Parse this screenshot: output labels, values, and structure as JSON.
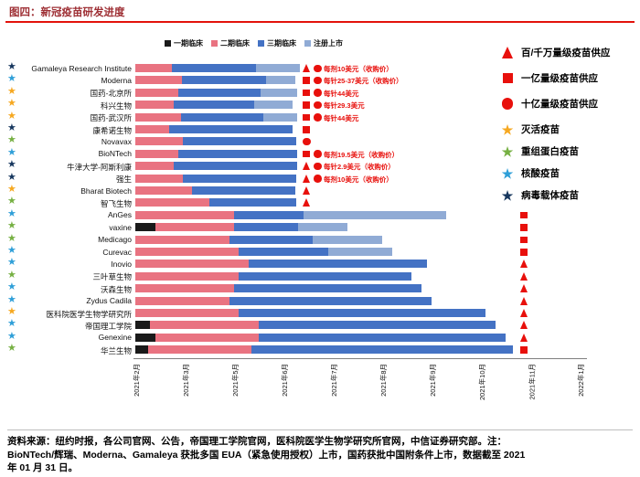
{
  "title": "图四：新冠疫苗研发进度",
  "colors": {
    "title": "#9e2f34",
    "rule": "#e3120b",
    "marker": "#e8100c",
    "phase1": "#1a1a1a",
    "phase2": "#e97381",
    "phase3": "#4472c4",
    "registered": "#90abd5",
    "star_inactivated": "#f6a821",
    "star_protein": "#76b043",
    "star_nucleic": "#2f9fd8",
    "star_vector": "#17375e"
  },
  "phase_legend": [
    "一期临床",
    "二期临床",
    "三期临床",
    "注册上市"
  ],
  "right_legend": [
    {
      "shape": "triangle",
      "label": "百/千万量级疫苗供应"
    },
    {
      "shape": "square",
      "label": "一亿量级疫苗供应"
    },
    {
      "shape": "circle",
      "label": "十亿量级疫苗供应"
    },
    {
      "shape": "star",
      "type": "inactivated",
      "label": "灭活疫苗"
    },
    {
      "shape": "star",
      "type": "protein",
      "label": "重组蛋白疫苗"
    },
    {
      "shape": "star",
      "type": "nucleic",
      "label": "核酸疫苗"
    },
    {
      "shape": "star",
      "type": "vector",
      "label": "病毒载体疫苗"
    }
  ],
  "chart_data": {
    "type": "bar",
    "subtype": "horizontal-stacked-timeline",
    "segment_unit": "x-axis tick intervals",
    "x_ticks": [
      "2021年2月",
      "2021年3月",
      "2021年5月",
      "2021年6月",
      "2021年7月",
      "2021年8月",
      "2021年9月",
      "2021年10月",
      "2021年11月",
      "2022年1月"
    ],
    "phases": [
      "一期临床",
      "二期临床",
      "三期临床",
      "注册上市"
    ],
    "rows": [
      {
        "name": "Gamaleya Research Institute",
        "star": "vector",
        "vaccine_type": "病毒载体疫苗",
        "segments": {
          "phase1": 0,
          "phase2": 0.74,
          "phase3": 1.7,
          "registered": 0.89
        },
        "markers": [
          "triangle",
          "circle"
        ],
        "marker_pos": 3.39,
        "price": "每剂10美元（收购价）"
      },
      {
        "name": "Moderna",
        "star": "nucleic",
        "vaccine_type": "核酸疫苗",
        "segments": {
          "phase1": 0,
          "phase2": 0.95,
          "phase3": 1.7,
          "registered": 0.6
        },
        "markers": [
          "square",
          "circle"
        ],
        "marker_pos": 3.39,
        "price": "每针25-37美元（收购价）"
      },
      {
        "name": "国药-北京所",
        "star": "inactivated",
        "vaccine_type": "灭活疫苗",
        "segments": {
          "phase1": 0,
          "phase2": 0.87,
          "phase3": 1.67,
          "registered": 0.74
        },
        "markers": [
          "square",
          "circle"
        ],
        "marker_pos": 3.39,
        "price": "每针44美元"
      },
      {
        "name": "科兴生物",
        "star": "inactivated",
        "vaccine_type": "灭活疫苗",
        "segments": {
          "phase1": 0,
          "phase2": 0.78,
          "phase3": 1.63,
          "registered": 0.78
        },
        "markers": [
          "square",
          "circle"
        ],
        "marker_pos": 3.39,
        "price": "每针29.3美元"
      },
      {
        "name": "国药-武汉所",
        "star": "inactivated",
        "vaccine_type": "灭活疫苗",
        "segments": {
          "phase1": 0,
          "phase2": 0.93,
          "phase3": 1.67,
          "registered": 0.68
        },
        "markers": [
          "square",
          "circle"
        ],
        "marker_pos": 3.39,
        "price": "每针44美元"
      },
      {
        "name": "康希诺生物",
        "star": "vector",
        "vaccine_type": "病毒载体疫苗",
        "segments": {
          "phase1": 0,
          "phase2": 0.69,
          "phase3": 2.5,
          "registered": 0
        },
        "markers": [
          "square"
        ],
        "marker_pos": 3.39,
        "price": ""
      },
      {
        "name": "Novavax",
        "star": "protein",
        "vaccine_type": "重组蛋白疫苗",
        "segments": {
          "phase1": 0,
          "phase2": 0.96,
          "phase3": 2.3,
          "registered": 0
        },
        "markers": [
          "circle"
        ],
        "marker_pos": 3.39,
        "price": ""
      },
      {
        "name": "BioNTech",
        "star": "nucleic",
        "vaccine_type": "核酸疫苗",
        "segments": {
          "phase1": 0,
          "phase2": 0.87,
          "phase3": 2.4,
          "registered": 0
        },
        "markers": [
          "square",
          "circle"
        ],
        "marker_pos": 3.39,
        "price": "每剂19.5美元（收购价）"
      },
      {
        "name": "牛津大学-阿斯利康",
        "star": "vector",
        "vaccine_type": "病毒载体疫苗",
        "segments": {
          "phase1": 0,
          "phase2": 0.78,
          "phase3": 2.5,
          "registered": 0
        },
        "markers": [
          "triangle",
          "circle"
        ],
        "marker_pos": 3.39,
        "price": "每针2.9美元（收购价）"
      },
      {
        "name": "强生",
        "star": "vector",
        "vaccine_type": "病毒载体疫苗",
        "segments": {
          "phase1": 0,
          "phase2": 0.96,
          "phase3": 2.3,
          "registered": 0
        },
        "markers": [
          "triangle",
          "circle"
        ],
        "marker_pos": 3.39,
        "price": "每剂10美元（收购价）"
      },
      {
        "name": "Bharat Biotech",
        "star": "inactivated",
        "vaccine_type": "灭活疫苗",
        "segments": {
          "phase1": 0,
          "phase2": 1.15,
          "phase3": 2.1,
          "registered": 0
        },
        "markers": [
          "triangle"
        ],
        "marker_pos": 3.39,
        "price": ""
      },
      {
        "name": "智飞生物",
        "star": "protein",
        "vaccine_type": "重组蛋白疫苗",
        "segments": {
          "phase1": 0,
          "phase2": 1.5,
          "phase3": 1.75,
          "registered": 0
        },
        "markers": [
          "triangle"
        ],
        "marker_pos": 3.39,
        "price": ""
      },
      {
        "name": "AnGes",
        "star": "nucleic",
        "vaccine_type": "核酸疫苗",
        "segments": {
          "phase1": 0,
          "phase2": 2.0,
          "phase3": 1.4,
          "registered": 2.9
        },
        "markers": [
          "square"
        ],
        "marker_pos": 7.8,
        "price": ""
      },
      {
        "name": "vaxine",
        "star": "protein",
        "vaccine_type": "重组蛋白疫苗",
        "segments": {
          "phase1": 0.4,
          "phase2": 1.6,
          "phase3": 1.3,
          "registered": 1.0
        },
        "markers": [
          "square"
        ],
        "marker_pos": 7.8,
        "price": ""
      },
      {
        "name": "Medicago",
        "star": "protein",
        "vaccine_type": "重组蛋白疫苗",
        "segments": {
          "phase1": 0,
          "phase2": 1.9,
          "phase3": 1.7,
          "registered": 1.4
        },
        "markers": [
          "square"
        ],
        "marker_pos": 7.8,
        "price": ""
      },
      {
        "name": "Curevac",
        "star": "nucleic",
        "vaccine_type": "核酸疫苗",
        "segments": {
          "phase1": 0,
          "phase2": 2.1,
          "phase3": 1.8,
          "registered": 1.3
        },
        "markers": [
          "square"
        ],
        "marker_pos": 7.8,
        "price": ""
      },
      {
        "name": "Inovio",
        "star": "nucleic",
        "vaccine_type": "核酸疫苗",
        "segments": {
          "phase1": 0,
          "phase2": 2.3,
          "phase3": 3.6,
          "registered": 0
        },
        "markers": [
          "triangle"
        ],
        "marker_pos": 7.8,
        "price": ""
      },
      {
        "name": "三叶草生物",
        "star": "protein",
        "vaccine_type": "重组蛋白疫苗",
        "segments": {
          "phase1": 0,
          "phase2": 2.1,
          "phase3": 3.5,
          "registered": 0
        },
        "markers": [
          "triangle"
        ],
        "marker_pos": 7.8,
        "price": ""
      },
      {
        "name": "沃森生物",
        "star": "nucleic",
        "vaccine_type": "核酸疫苗",
        "segments": {
          "phase1": 0,
          "phase2": 2.0,
          "phase3": 3.8,
          "registered": 0
        },
        "markers": [
          "triangle"
        ],
        "marker_pos": 7.8,
        "price": ""
      },
      {
        "name": "Zydus Cadila",
        "star": "nucleic",
        "vaccine_type": "核酸疫苗",
        "segments": {
          "phase1": 0,
          "phase2": 1.9,
          "phase3": 4.1,
          "registered": 0
        },
        "markers": [
          "triangle"
        ],
        "marker_pos": 7.8,
        "price": ""
      },
      {
        "name": "医科院医学生物学研究所",
        "star": "inactivated",
        "vaccine_type": "灭活疫苗",
        "segments": {
          "phase1": 0,
          "phase2": 2.1,
          "phase3": 5.0,
          "registered": 0
        },
        "markers": [
          "triangle"
        ],
        "marker_pos": 7.8,
        "price": ""
      },
      {
        "name": "帝国理工学院",
        "star": "nucleic",
        "vaccine_type": "核酸疫苗",
        "segments": {
          "phase1": 0.3,
          "phase2": 2.2,
          "phase3": 4.8,
          "registered": 0
        },
        "markers": [
          "triangle"
        ],
        "marker_pos": 7.8,
        "price": ""
      },
      {
        "name": "Genexine",
        "star": "nucleic",
        "vaccine_type": "核酸疫苗",
        "segments": {
          "phase1": 0.4,
          "phase2": 2.1,
          "phase3": 5.0,
          "registered": 0
        },
        "markers": [
          "triangle"
        ],
        "marker_pos": 7.8,
        "price": ""
      },
      {
        "name": "华兰生物",
        "star": "protein",
        "vaccine_type": "重组蛋白疫苗",
        "segments": {
          "phase1": 0.25,
          "phase2": 2.1,
          "phase3": 5.3,
          "registered": 0
        },
        "markers": [
          "square"
        ],
        "marker_pos": 7.8,
        "price": ""
      }
    ]
  },
  "source_note": {
    "lines": [
      "资料来源：纽约时报，各公司官网、公告，帝国理工学院官网，医科院医学生物学研究所官网，中信证券研究部。注：",
      "BioNTech/辉瑞、Moderna、Gamaleya 获批多国 EUA（紧急使用授权）上市，国药获批中国附条件上市，数据截至 2021",
      "年 01 月 31 日。"
    ]
  }
}
